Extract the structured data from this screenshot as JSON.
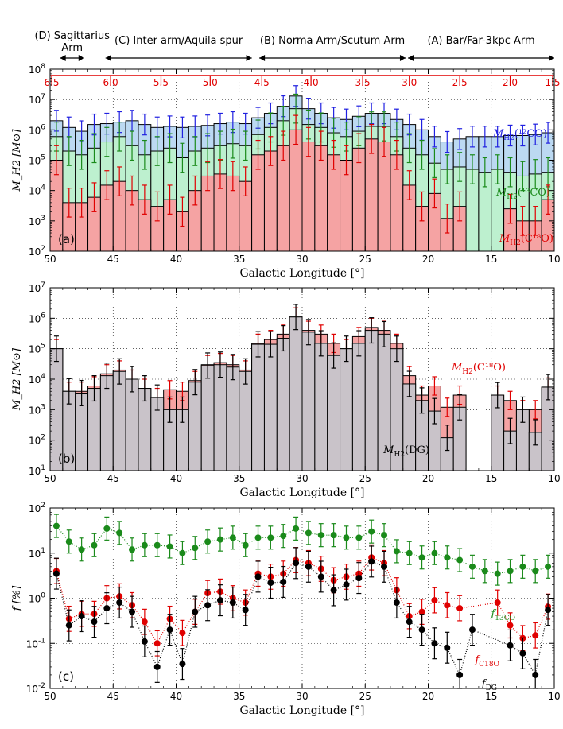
{
  "colors": {
    "co12": "#2020e0",
    "co13": "#1a8a1a",
    "c18o": "#e00000",
    "dg": "#000000",
    "fill12": "#bcd9f2",
    "fill13": "#bdf0cf",
    "fill18": "#f5a3a3",
    "filldg": "#c9c3c9"
  },
  "arms": [
    {
      "label_lines": [
        "(D) Sagittarius",
        "Arm"
      ],
      "l_from": 49.2,
      "l_to": 47.3
    },
    {
      "label_lines": [
        "(C) Inter arm/Aquila spur"
      ],
      "l_from": 45.6,
      "l_to": 34.0
    },
    {
      "label_lines": [
        "(B) Norma Arm/Scutum Arm"
      ],
      "l_from": 33.4,
      "l_to": 21.8
    },
    {
      "label_lines": [
        "(A) Bar/Far-3kpc Arm"
      ],
      "l_from": 21.6,
      "l_to": 10.0
    }
  ],
  "distance_labels": [
    "6.5",
    "6.0",
    "5.5",
    "5.0",
    "4.5",
    "4.0",
    "3.5",
    "3.0",
    "2.5",
    "2.0",
    "1.5"
  ],
  "chart_data": [
    {
      "panel": "(a)",
      "type": "bar",
      "xlabel": "Galactic Longitude [°]",
      "ylabel": "M_H2 [M⊙]",
      "xlim": [
        50,
        10
      ],
      "ylim": [
        100,
        100000000
      ],
      "yscale": "log",
      "xticks": [
        "50",
        "45",
        "40",
        "35",
        "30",
        "25",
        "20",
        "15",
        "10"
      ],
      "yticks": [
        "10^2",
        "10^3",
        "10^4",
        "10^5",
        "10^6",
        "10^7",
        "10^8"
      ],
      "bin_centers": [
        49.5,
        48.5,
        47.5,
        46.5,
        45.5,
        44.5,
        43.5,
        42.5,
        41.5,
        40.5,
        39.5,
        38.5,
        37.5,
        36.5,
        35.5,
        34.5,
        33.5,
        32.5,
        31.5,
        30.5,
        29.5,
        28.5,
        27.5,
        26.5,
        25.5,
        24.5,
        23.5,
        22.5,
        21.5,
        20.5,
        19.5,
        18.5,
        17.5,
        16.5,
        15.5,
        14.5,
        13.5,
        12.5,
        11.5,
        10.5
      ],
      "series": [
        {
          "name": "M_H2(12CO)",
          "label_main": "M",
          "label_sub": "H2",
          "label_rest": "(¹²CO)",
          "values": [
            2000000.0,
            1200000.0,
            900000.0,
            1500000.0,
            1600000.0,
            1800000.0,
            2000000.0,
            1500000.0,
            1200000.0,
            1300000.0,
            1200000.0,
            1300000.0,
            1400000.0,
            1600000.0,
            1800000.0,
            1600000.0,
            2500000.0,
            3500000.0,
            6000000.0,
            13000000.0,
            5000000.0,
            3500000.0,
            2500000.0,
            2200000.0,
            2800000.0,
            3500000.0,
            3500000.0,
            2200000.0,
            1500000.0,
            1000000.0,
            600000.0,
            400000.0,
            500000.0,
            600000.0,
            600000.0,
            600000.0,
            650000.0,
            650000.0,
            700000.0,
            800000.0
          ]
        },
        {
          "name": "M_H2(13CO)",
          "label_main": "M",
          "label_sub": "H2",
          "label_rest": "(¹³CO)",
          "values": [
            600000.0,
            200000.0,
            150000.0,
            250000.0,
            400000.0,
            600000.0,
            300000.0,
            150000.0,
            200000.0,
            250000.0,
            120000.0,
            200000.0,
            250000.0,
            300000.0,
            350000.0,
            300000.0,
            700000.0,
            1200000.0,
            2000000.0,
            5000000.0,
            1500000.0,
            1200000.0,
            800000.0,
            600000.0,
            900000.0,
            1300000.0,
            1300000.0,
            600000.0,
            250000.0,
            150000.0,
            80000.0,
            50000.0,
            60000.0,
            50000.0,
            40000.0,
            50000.0,
            40000.0,
            30000.0,
            35000.0,
            40000.0
          ]
        },
        {
          "name": "M_H2(C18O)",
          "label_main": "M",
          "label_sub": "H2",
          "label_rest": "(C¹⁸O)",
          "values": [
            100000.0,
            4000.0,
            4000.0,
            6000.0,
            15000.0,
            20000.0,
            10000.0,
            5000.0,
            3000.0,
            5000.0,
            2000.0,
            10000.0,
            30000.0,
            35000.0,
            30000.0,
            20000.0,
            150000.0,
            200000.0,
            300000.0,
            1000000.0,
            400000.0,
            300000.0,
            150000.0,
            100000.0,
            250000.0,
            500000.0,
            400000.0,
            150000.0,
            15000.0,
            3000.0,
            8000.0,
            1200.0,
            3000.0,
            0,
            0,
            0,
            2500.0,
            1000.0,
            1000.0,
            5000.0
          ]
        }
      ]
    },
    {
      "panel": "(b)",
      "type": "bar",
      "xlabel": "Galactic Longitude [°]",
      "ylabel": "M_H2 [M⊙]",
      "xlim": [
        50,
        10
      ],
      "ylim": [
        10,
        10000000
      ],
      "yscale": "log",
      "xticks": [
        "50",
        "45",
        "40",
        "35",
        "30",
        "25",
        "20",
        "15",
        "10"
      ],
      "yticks": [
        "10^1",
        "10^2",
        "10^3",
        "10^4",
        "10^5",
        "10^6",
        "10^7"
      ],
      "bin_centers": [
        49.5,
        48.5,
        47.5,
        46.5,
        45.5,
        44.5,
        43.5,
        42.5,
        41.5,
        40.5,
        39.5,
        38.5,
        37.5,
        36.5,
        35.5,
        34.5,
        33.5,
        32.5,
        31.5,
        30.5,
        29.5,
        28.5,
        27.5,
        26.5,
        25.5,
        24.5,
        23.5,
        22.5,
        21.5,
        20.5,
        19.5,
        18.5,
        17.5,
        16.5,
        15.5,
        14.5,
        13.5,
        12.5,
        11.5,
        10.5
      ],
      "series": [
        {
          "name": "M_H2(C18O)",
          "label_main": "M",
          "label_sub": "H2",
          "label_rest": "(C¹⁸O)",
          "values": [
            100000.0,
            4000.0,
            4000.0,
            6000.0,
            15000.0,
            20000.0,
            10000.0,
            5000.0,
            2500.0,
            4500.0,
            4000.0,
            9000.0,
            30000.0,
            35000.0,
            30000.0,
            20000.0,
            150000.0,
            200000.0,
            300000.0,
            1100000.0,
            400000.0,
            300000.0,
            150000.0,
            100000.0,
            250000.0,
            500000.0,
            400000.0,
            150000.0,
            13000.0,
            3000.0,
            6000.0,
            1200.0,
            3000.0,
            0,
            0,
            3000.0,
            2000.0,
            1000.0,
            1000.0,
            5500.0
          ]
        },
        {
          "name": "M_H2(DG)",
          "label_main": "M",
          "label_sub": "H2",
          "label_rest": "(DG)",
          "values": [
            100000.0,
            4000.0,
            3500.0,
            5000.0,
            13000.0,
            18000.0,
            10000.0,
            5000.0,
            2500.0,
            1000.0,
            1000.0,
            8000.0,
            28000.0,
            30000.0,
            25000.0,
            18000.0,
            140000.0,
            140000.0,
            220000.0,
            1100000.0,
            350000.0,
            150000.0,
            60000.0,
            100000.0,
            150000.0,
            400000.0,
            300000.0,
            100000.0,
            7000.0,
            2000.0,
            900.0,
            120.0,
            1200.0,
            0,
            0,
            3000.0,
            200.0,
            1000.0,
            180.0,
            5500.0
          ]
        }
      ]
    },
    {
      "panel": "(c)",
      "type": "scatter",
      "xlabel": "Galactic Longitude [°]",
      "ylabel": "f [%]",
      "xlim": [
        50,
        10
      ],
      "ylim": [
        0.01,
        100
      ],
      "yscale": "log",
      "xticks": [
        "50",
        "45",
        "40",
        "35",
        "30",
        "25",
        "20",
        "15",
        "10"
      ],
      "yticks": [
        "10^-2",
        "10^-1",
        "10^0",
        "10^1",
        "10^2"
      ],
      "bin_centers": [
        49.5,
        48.5,
        47.5,
        46.5,
        45.5,
        44.5,
        43.5,
        42.5,
        41.5,
        40.5,
        39.5,
        38.5,
        37.5,
        36.5,
        35.5,
        34.5,
        33.5,
        32.5,
        31.5,
        30.5,
        29.5,
        28.5,
        27.5,
        26.5,
        25.5,
        24.5,
        23.5,
        22.5,
        21.5,
        20.5,
        19.5,
        18.5,
        17.5,
        16.5,
        15.5,
        14.5,
        13.5,
        12.5,
        11.5,
        10.5
      ],
      "series": [
        {
          "name": "f_13CO",
          "label_main": "f",
          "label_sub": "13CO",
          "label_rest": "",
          "values": [
            40,
            18,
            12,
            15,
            35,
            28,
            12,
            15,
            15,
            14,
            10,
            13,
            18,
            20,
            22,
            15,
            22,
            22,
            24,
            35,
            28,
            25,
            25,
            22,
            22,
            30,
            25,
            11,
            10,
            8,
            10,
            8,
            7,
            5,
            4,
            3.5,
            4,
            5,
            4,
            5
          ]
        },
        {
          "name": "f_C18O",
          "label_main": "f",
          "label_sub": "C18O",
          "label_rest": "",
          "values": [
            4,
            0.35,
            0.45,
            0.45,
            1.0,
            1.1,
            0.7,
            0.3,
            0.1,
            0.35,
            0.17,
            0.5,
            1.3,
            1.4,
            1.0,
            0.8,
            3.5,
            3.0,
            3.5,
            7,
            6,
            4.5,
            2.5,
            3,
            3.5,
            8,
            6,
            1.5,
            0.4,
            0.5,
            0.9,
            0.7,
            0.6,
            null,
            null,
            0.8,
            0.25,
            0.13,
            0.15,
            0.65
          ]
        },
        {
          "name": "f_DG",
          "label_main": "f",
          "label_sub": "DG",
          "label_rest": "",
          "values": [
            3.5,
            0.25,
            0.4,
            0.3,
            0.6,
            0.8,
            0.5,
            0.11,
            0.03,
            0.2,
            0.035,
            0.5,
            0.7,
            0.9,
            0.8,
            0.55,
            3,
            2.2,
            2.3,
            6,
            5,
            3,
            1.5,
            2,
            2.8,
            6.5,
            5,
            0.8,
            0.3,
            0.2,
            0.1,
            0.08,
            0.02,
            0.2,
            null,
            null,
            0.09,
            0.06,
            0.02,
            0.55
          ]
        }
      ]
    }
  ],
  "panel_labels": [
    "(a)",
    "(b)",
    "(c)"
  ],
  "top_tick_label": "10^8"
}
